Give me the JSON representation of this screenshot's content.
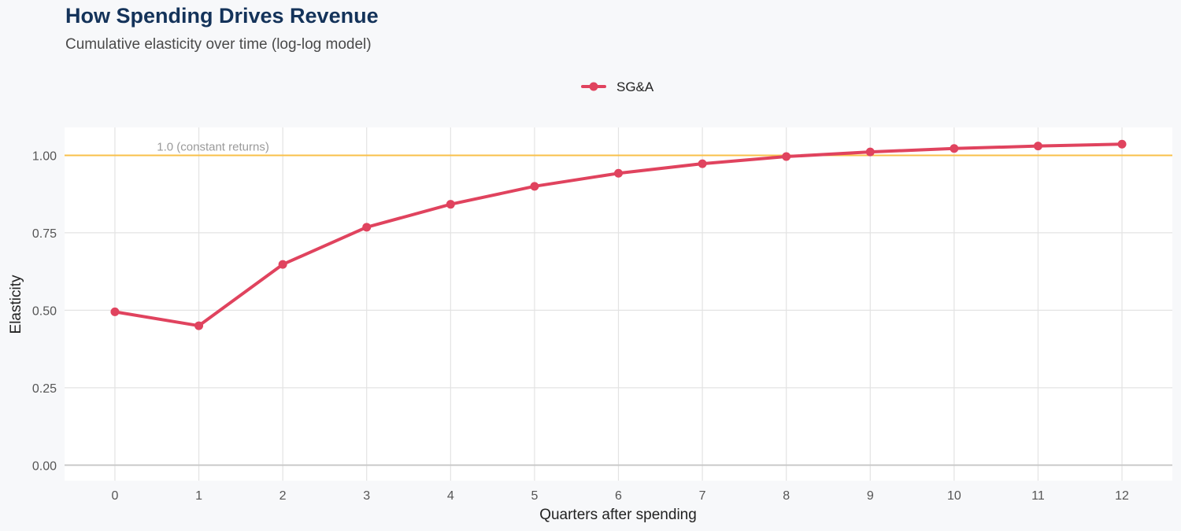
{
  "chart_data": {
    "type": "line",
    "title": "How Spending Drives Revenue",
    "subtitle": "Cumulative elasticity over time (log-log model)",
    "xlabel": "Quarters after spending",
    "ylabel": "Elasticity",
    "x": [
      0,
      1,
      2,
      3,
      4,
      5,
      6,
      7,
      8,
      9,
      10,
      11,
      12
    ],
    "xlim": [
      -0.6,
      12.6
    ],
    "ylim": [
      -0.05,
      1.09
    ],
    "yticks": [
      0.0,
      0.25,
      0.5,
      0.75,
      1.0
    ],
    "ytick_labels": [
      "0.00",
      "0.25",
      "0.50",
      "0.75",
      "1.00"
    ],
    "xtick_labels": [
      "0",
      "1",
      "2",
      "3",
      "4",
      "5",
      "6",
      "7",
      "8",
      "9",
      "10",
      "11",
      "12"
    ],
    "grid": true,
    "legend_position": "top-center",
    "series": [
      {
        "name": "SG&A",
        "color": "#e0435e",
        "values": [
          0.495,
          0.45,
          0.648,
          0.768,
          0.842,
          0.9,
          0.942,
          0.973,
          0.996,
          1.011,
          1.022,
          1.03,
          1.036
        ]
      }
    ],
    "reference_line": {
      "y": 1.0,
      "label": "1.0 (constant returns)",
      "color": "#f9c04a"
    }
  }
}
